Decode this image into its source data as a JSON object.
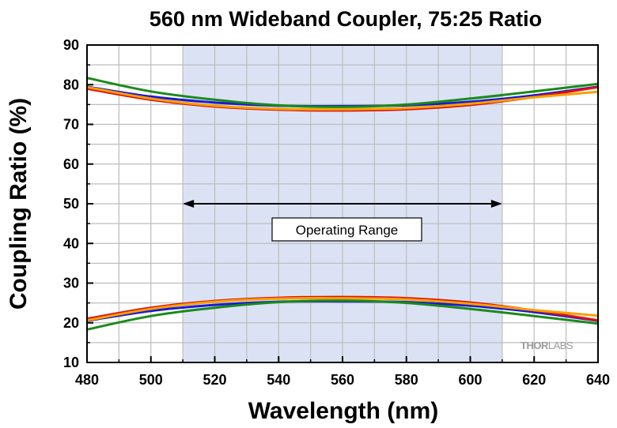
{
  "chart_data": {
    "type": "line",
    "title": "560 nm Wideband Coupler, 75:25 Ratio",
    "xlabel": "Wavelength (nm)",
    "ylabel": "Coupling Ratio (%)",
    "xlim": [
      480,
      640
    ],
    "ylim": [
      10,
      90
    ],
    "xticks": [
      480,
      500,
      520,
      540,
      560,
      580,
      600,
      620,
      640
    ],
    "yticks": [
      10,
      20,
      30,
      40,
      50,
      60,
      70,
      80,
      90
    ],
    "grid": true,
    "shaded_region": {
      "x": [
        510,
        610
      ],
      "color": "#dbe2f4"
    },
    "annotation": {
      "text": "Operating Range",
      "arrow_x": [
        510,
        610
      ],
      "arrow_y": 50
    },
    "watermark": {
      "part1": "THOR",
      "part2": "LABS"
    },
    "series": [
      {
        "color": "#1a1ad6",
        "x": [
          480,
          500,
          520,
          540,
          560,
          580,
          600,
          620,
          640
        ],
        "y": [
          79.5,
          77.0,
          75.5,
          74.7,
          74.6,
          74.8,
          75.7,
          77.3,
          79.5
        ]
      },
      {
        "color": "#e01010",
        "x": [
          480,
          500,
          520,
          540,
          560,
          580,
          600,
          620,
          640
        ],
        "y": [
          79.0,
          76.2,
          74.5,
          73.7,
          73.5,
          73.8,
          74.9,
          76.9,
          79.4
        ]
      },
      {
        "color": "#f5a000",
        "x": [
          480,
          500,
          520,
          540,
          560,
          580,
          600,
          620,
          640
        ],
        "y": [
          79.4,
          76.5,
          74.7,
          73.9,
          73.8,
          74.1,
          75.2,
          76.8,
          78.2
        ]
      },
      {
        "color": "#1a8a1a",
        "x": [
          480,
          500,
          520,
          540,
          560,
          580,
          600,
          620,
          640
        ],
        "y": [
          81.7,
          78.3,
          76.2,
          74.8,
          74.4,
          75.0,
          76.5,
          78.3,
          80.2
        ]
      },
      {
        "color": "#1a1ad6",
        "x": [
          480,
          500,
          520,
          540,
          560,
          580,
          600,
          620,
          640
        ],
        "y": [
          20.5,
          23.0,
          24.5,
          25.3,
          25.4,
          25.2,
          24.3,
          22.7,
          20.5
        ]
      },
      {
        "color": "#e01010",
        "x": [
          480,
          500,
          520,
          540,
          560,
          580,
          600,
          620,
          640
        ],
        "y": [
          21.0,
          23.8,
          25.5,
          26.3,
          26.5,
          26.2,
          25.1,
          23.1,
          20.6
        ]
      },
      {
        "color": "#f5a000",
        "x": [
          480,
          500,
          520,
          540,
          560,
          580,
          600,
          620,
          640
        ],
        "y": [
          20.6,
          23.5,
          25.3,
          26.1,
          26.2,
          25.9,
          24.8,
          23.2,
          21.8
        ]
      },
      {
        "color": "#1a8a1a",
        "x": [
          480,
          500,
          520,
          540,
          560,
          580,
          600,
          620,
          640
        ],
        "y": [
          18.3,
          21.7,
          23.8,
          25.2,
          25.6,
          25.0,
          23.5,
          21.7,
          19.8
        ]
      }
    ]
  }
}
